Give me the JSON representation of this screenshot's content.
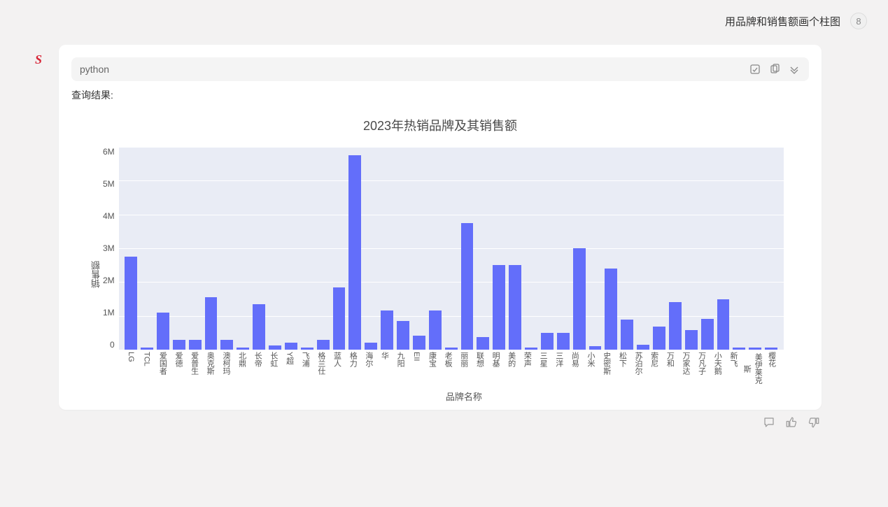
{
  "user_message": "用品牌和销售额画个柱图",
  "code_block": {
    "language": "python"
  },
  "result_label": "查询结果:",
  "chart": {
    "type": "bar",
    "title": "2023年热销品牌及其销售额",
    "x_label": "品牌名称",
    "y_label": "销售额",
    "background_color": "#e9ecf5",
    "grid_color": "#ffffff",
    "bar_color": "#636efa",
    "bar_width": 0.78,
    "ylim": [
      0,
      6000000
    ],
    "y_ticks": [
      "6M",
      "5M",
      "4M",
      "3M",
      "2M",
      "1M",
      "0"
    ],
    "title_fontsize": 18,
    "label_fontsize": 13,
    "tick_fontsize": 12,
    "categories": [
      "LG",
      "TCL",
      "爱国者",
      "爱德",
      "爱普生",
      "奥克斯",
      "澳柯玛",
      "北鼎",
      "长帝",
      "长虹",
      "Y超",
      "飞浦",
      "格兰仕",
      "蓝人",
      "格力",
      "海尔",
      "华",
      "九阳",
      "EII",
      "康宝",
      "老板",
      "丽丽",
      "联想",
      "明基",
      "美的",
      "荣声",
      "三星",
      "三洋",
      "尚易",
      "小米",
      "史密斯",
      "松下",
      "苏泊尔",
      "索尼",
      "万和",
      "万家达",
      "万凡子",
      "小天鹅",
      "新飞",
      "美伊莱克斯",
      "樱花"
    ],
    "values": [
      2750000,
      60000,
      1100000,
      280000,
      280000,
      1550000,
      280000,
      60000,
      1350000,
      120000,
      200000,
      60000,
      280000,
      1850000,
      5750000,
      200000,
      1150000,
      850000,
      420000,
      1150000,
      60000,
      3750000,
      370000,
      2500000,
      2500000,
      60000,
      500000,
      500000,
      3000000,
      100000,
      2400000,
      900000,
      150000,
      680000,
      1400000,
      580000,
      920000,
      1480000,
      60000,
      60000,
      60000
    ]
  },
  "icons": {
    "assistant": "S",
    "user_avatar": "8"
  }
}
